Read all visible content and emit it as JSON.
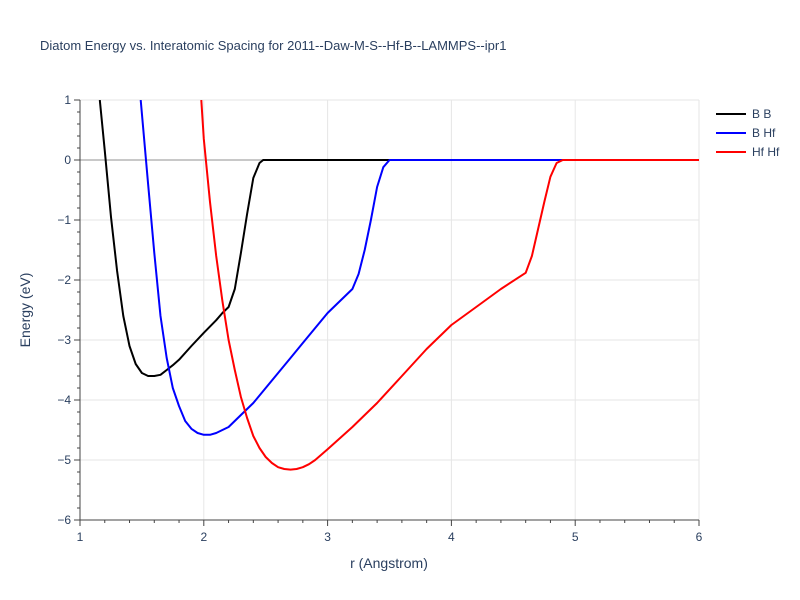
{
  "chart_data": {
    "type": "line",
    "title": "Diatom Energy vs. Interatomic Spacing for 2011--Daw-M-S--Hf-B--LAMMPS--ipr1",
    "xlabel": "r (Angstrom)",
    "ylabel": "Energy (eV)",
    "xlim": [
      1,
      6
    ],
    "ylim": [
      -6,
      1
    ],
    "xticks": [
      1,
      2,
      3,
      4,
      5,
      6
    ],
    "yticks": [
      1,
      0,
      -1,
      -2,
      -3,
      -4,
      -5,
      -6
    ],
    "xtick_labels": [
      "1",
      "2",
      "3",
      "4",
      "5",
      "6"
    ],
    "ytick_labels": [
      "1",
      "0",
      "−1",
      "−2",
      "−3",
      "−4",
      "−5",
      "−6"
    ],
    "grid": true,
    "legend_position": "top-right",
    "series": [
      {
        "name": "B B",
        "color": "#000000",
        "x": [
          1.16,
          1.2,
          1.25,
          1.3,
          1.35,
          1.4,
          1.45,
          1.5,
          1.55,
          1.6,
          1.65,
          1.7,
          1.75,
          1.8,
          1.9,
          2.0,
          2.1,
          2.15,
          2.2,
          2.25,
          2.3,
          2.35,
          2.4,
          2.45,
          2.48,
          2.5,
          2.55,
          6.0
        ],
        "y": [
          1.0,
          0.15,
          -0.95,
          -1.85,
          -2.6,
          -3.1,
          -3.4,
          -3.55,
          -3.6,
          -3.6,
          -3.58,
          -3.5,
          -3.42,
          -3.33,
          -3.1,
          -2.88,
          -2.67,
          -2.55,
          -2.45,
          -2.15,
          -1.55,
          -0.9,
          -0.3,
          -0.05,
          0.0,
          0.0,
          0.0,
          0.0
        ]
      },
      {
        "name": "B Hf",
        "color": "#0000ff",
        "x": [
          1.49,
          1.55,
          1.6,
          1.65,
          1.7,
          1.75,
          1.8,
          1.85,
          1.9,
          1.95,
          2.0,
          2.05,
          2.1,
          2.2,
          2.3,
          2.4,
          2.5,
          2.6,
          2.7,
          2.8,
          2.9,
          3.0,
          3.1,
          3.2,
          3.25,
          3.3,
          3.35,
          3.4,
          3.45,
          3.5,
          3.55,
          6.0
        ],
        "y": [
          1.0,
          -0.4,
          -1.55,
          -2.6,
          -3.3,
          -3.8,
          -4.1,
          -4.35,
          -4.48,
          -4.55,
          -4.58,
          -4.58,
          -4.55,
          -4.45,
          -4.25,
          -4.05,
          -3.8,
          -3.55,
          -3.3,
          -3.05,
          -2.8,
          -2.55,
          -2.35,
          -2.15,
          -1.9,
          -1.5,
          -1.0,
          -0.45,
          -0.12,
          0.0,
          0.0,
          0.0
        ]
      },
      {
        "name": "Hf Hf",
        "color": "#ff0000",
        "x": [
          1.98,
          2.0,
          2.05,
          2.1,
          2.15,
          2.2,
          2.25,
          2.3,
          2.35,
          2.4,
          2.45,
          2.5,
          2.55,
          2.6,
          2.65,
          2.7,
          2.75,
          2.8,
          2.85,
          2.9,
          3.0,
          3.2,
          3.4,
          3.6,
          3.8,
          4.0,
          4.2,
          4.4,
          4.6,
          4.65,
          4.7,
          4.75,
          4.8,
          4.85,
          4.9,
          4.95,
          5.0,
          5.05,
          6.0
        ],
        "y": [
          1.0,
          0.35,
          -0.7,
          -1.6,
          -2.35,
          -3.0,
          -3.5,
          -3.95,
          -4.3,
          -4.6,
          -4.8,
          -4.95,
          -5.05,
          -5.12,
          -5.15,
          -5.16,
          -5.15,
          -5.12,
          -5.07,
          -5.0,
          -4.82,
          -4.45,
          -4.05,
          -3.6,
          -3.15,
          -2.75,
          -2.45,
          -2.15,
          -1.88,
          -1.6,
          -1.15,
          -0.7,
          -0.28,
          -0.05,
          0.0,
          0.0,
          0.0,
          0.0,
          0.0
        ]
      }
    ]
  }
}
